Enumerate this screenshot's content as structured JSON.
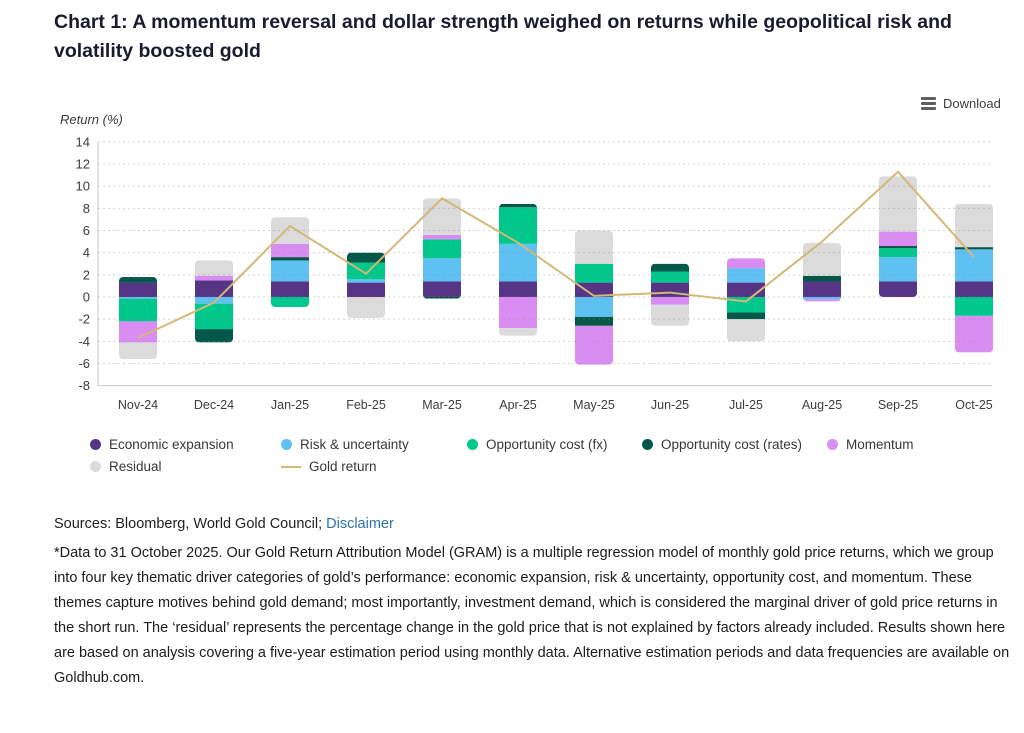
{
  "page": {
    "title": "Chart 1: A momentum reversal and dollar strength weighed on returns while geopolitical risk and volatility boosted gold",
    "download_label": "Download"
  },
  "chart_data": {
    "type": "bar",
    "stacked": true,
    "title": "Chart 1: A momentum reversal and dollar strength weighed on returns while geopolitical risk and volatility boosted gold",
    "ylabel": "Return (%)",
    "ylim": [
      -8,
      14
    ],
    "ytick_step": 2,
    "grid": "dotted-horizontal",
    "legend_position": "bottom",
    "categories": [
      "Nov-24",
      "Dec-24",
      "Jan-25",
      "Feb-25",
      "Mar-25",
      "Apr-25",
      "May-25",
      "Jun-25",
      "Jul-25",
      "Aug-25",
      "Sep-25",
      "Oct-25"
    ],
    "series": [
      {
        "name": "Economic expansion",
        "color": "#573586",
        "values": [
          1.3,
          1.5,
          1.4,
          1.3,
          1.4,
          1.4,
          1.3,
          1.3,
          1.3,
          1.4,
          1.4,
          1.4
        ]
      },
      {
        "name": "Risk & uncertainty",
        "color": "#5fc1f2",
        "values": [
          -0.15,
          -0.6,
          1.9,
          0.3,
          2.1,
          3.4,
          -1.8,
          0,
          1.3,
          -0.2,
          2.2,
          2.9
        ]
      },
      {
        "name": "Opportunity cost (fx)",
        "color": "#00c78c",
        "values": [
          -2.05,
          -2.3,
          -0.9,
          1.5,
          1.7,
          3.3,
          1.7,
          1.0,
          -1.4,
          0,
          0.8,
          -1.7
        ]
      },
      {
        "name": "Opportunity cost (rates)",
        "color": "#045849",
        "values": [
          0.5,
          -1.2,
          0.3,
          0.9,
          -0.15,
          0.3,
          -0.8,
          0.7,
          -0.6,
          0.5,
          0.2,
          0.2
        ]
      },
      {
        "name": "Momentum",
        "color": "#d98df2",
        "values": [
          -1.9,
          0.4,
          1.2,
          0,
          0.4,
          -2.8,
          -3.5,
          -0.7,
          0.9,
          -0.2,
          1.3,
          -3.3
        ]
      },
      {
        "name": "Residual",
        "color": "#dbdbdb",
        "values": [
          -1.5,
          1.4,
          2.4,
          -1.9,
          3.3,
          -0.7,
          3.0,
          -1.9,
          -2.0,
          3.0,
          5.0,
          3.9
        ]
      }
    ],
    "line_series": {
      "name": "Gold return",
      "color": "#d3b877",
      "values": [
        -3.7,
        -0.5,
        6.4,
        2.1,
        8.9,
        4.9,
        0.1,
        0.4,
        -0.4,
        5.0,
        11.3,
        3.6
      ]
    }
  },
  "footer": {
    "sources_prefix": "Sources: Bloomberg, World Gold Council;",
    "disclaimer_link": "Disclaimer",
    "footnote": "*Data to 31 October 2025. Our Gold Return Attribution Model (GRAM) is a multiple regression model of monthly gold price returns, which we group into four key thematic driver categories of gold’s performance: economic expansion, risk & uncertainty, opportunity cost, and momentum. These themes capture motives behind gold demand; most importantly, investment demand, which is considered the marginal driver of gold price returns in the short run. The ‘residual’ represents the percentage change in the gold price that is not explained by factors already included. Results shown here are based on analysis covering a five-year estimation period using monthly data. Alternative estimation periods and data frequencies are available on Goldhub.com."
  }
}
